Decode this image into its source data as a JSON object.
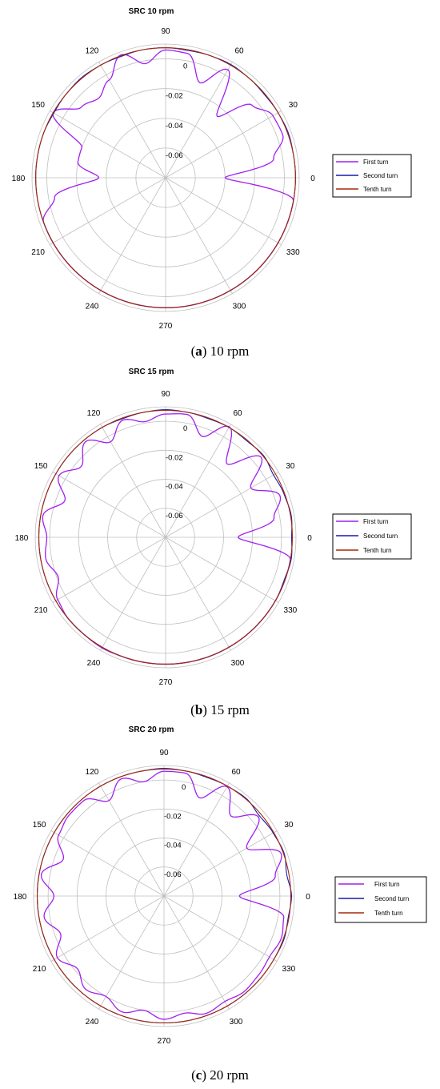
{
  "colors": {
    "first_turn": "#a020f0",
    "second_turn": "#1a1aa8",
    "tenth_turn": "#a52a0a",
    "grid": "#bfbfbf"
  },
  "chart_data": [
    {
      "type": "polar-line",
      "title": "SRC 10 rpm",
      "caption": {
        "letter": "a",
        "text": "10 rpm"
      },
      "angular_ticks": [
        "0",
        "30",
        "60",
        "90",
        "120",
        "150",
        "180",
        "210",
        "240",
        "270",
        "300",
        "330"
      ],
      "radial_ticks": [
        "0",
        "-0.02",
        "-0.04",
        "-0.06"
      ],
      "rlim": [
        -0.08,
        0.01
      ],
      "legend": {
        "placement": "right",
        "entries": [
          "First turn",
          "Second turn",
          "Tenth turn"
        ]
      },
      "series": [
        {
          "name": "First turn",
          "base": 0.0075,
          "angle_step_deg": 10,
          "values": [
            -0.04,
            -0.006,
            0.004,
            0.0035,
            -0.004,
            -0.026,
            0.004,
            -0.012,
            0.005,
            0.006,
            -0.002,
            0.008,
            -0.004,
            -0.01,
            -0.006,
            0.0075,
            -0.02,
            -0.02,
            -0.035,
            -0.004,
            0.0075,
            0.0075,
            0.0075,
            0.0075,
            0.0075,
            0.0075,
            0.0075,
            0.0075,
            0.0075,
            0.0075,
            0.0075,
            0.0075,
            0.0075,
            0.0075,
            0.0075,
            0.0075
          ]
        },
        {
          "name": "Second turn",
          "base": 0.0075,
          "angle_step_deg": 10,
          "values": [
            0.0075,
            0.0075,
            0.008,
            0.0075,
            0.007,
            0.0075,
            0.008,
            0.0075,
            0.007,
            0.0075,
            0.0075,
            0.007,
            0.0075,
            0.008,
            0.0075,
            0.007,
            0.0075,
            0.0075,
            0.0075,
            0.0075,
            0.0075,
            0.0075,
            0.0075,
            0.0075,
            0.0075,
            0.0075,
            0.0075,
            0.0075,
            0.0075,
            0.0075,
            0.0075,
            0.0075,
            0.0075,
            0.0075,
            0.0075,
            0.0075
          ]
        },
        {
          "name": "Tenth turn",
          "base": 0.0075,
          "angle_step_deg": 10,
          "values": [
            0.0075,
            0.0075,
            0.0075,
            0.0075,
            0.0075,
            0.0075,
            0.0075,
            0.0075,
            0.0075,
            0.0075,
            0.0075,
            0.0075,
            0.0075,
            0.0075,
            0.0075,
            0.0075,
            0.0075,
            0.0075,
            0.0075,
            0.0075,
            0.0075,
            0.0075,
            0.0075,
            0.0075,
            0.0075,
            0.0075,
            0.0075,
            0.0075,
            0.0075,
            0.0075,
            0.0075,
            0.0075,
            0.0075,
            0.0075,
            0.0075,
            0.0075
          ]
        }
      ]
    },
    {
      "type": "polar-line",
      "title": "SRC 15 rpm",
      "caption": {
        "letter": "b",
        "text": "15 rpm"
      },
      "angular_ticks": [
        "0",
        "30",
        "60",
        "90",
        "120",
        "150",
        "180",
        "210",
        "240",
        "270",
        "300",
        "330"
      ],
      "radial_ticks": [
        "0",
        "-0.02",
        "-0.04",
        "-0.06"
      ],
      "rlim": [
        -0.08,
        0.01
      ],
      "legend": {
        "placement": "right",
        "entries": [
          "First turn",
          "Second turn",
          "Tenth turn"
        ]
      },
      "series": [
        {
          "name": "First turn",
          "base": 0.0075,
          "angle_step_deg": 10,
          "values": [
            -0.03,
            -0.004,
            0.004,
            -0.012,
            0.006,
            -0.014,
            0.008,
            -0.006,
            0.006,
            0.005,
            0.001,
            0.006,
            -0.004,
            0.006,
            -0.004,
            0.005,
            -0.006,
            0.006,
            0.002,
            0.004,
            -0.001,
            0.006,
            0.0075,
            0.0075,
            0.008,
            0.0075,
            0.0075,
            0.0075,
            0.0075,
            0.0075,
            0.0075,
            0.0075,
            0.0075,
            0.0075,
            0.0075,
            0.0075
          ]
        },
        {
          "name": "Second turn",
          "base": 0.0075,
          "angle_step_deg": 10,
          "values": [
            0.007,
            0.008,
            0.007,
            0.006,
            0.008,
            0.007,
            0.0075,
            0.007,
            0.0075,
            0.008,
            0.0075,
            0.007,
            0.0075,
            0.0075,
            0.0075,
            0.0075,
            0.0075,
            0.0075,
            0.0075,
            0.0075,
            0.0075,
            0.0075,
            0.0075,
            0.0075,
            0.0075,
            0.0075,
            0.0075,
            0.0075,
            0.0075,
            0.0075,
            0.0075,
            0.0075,
            0.0075,
            0.0075,
            0.007,
            0.008
          ]
        },
        {
          "name": "Tenth turn",
          "base": 0.0075,
          "angle_step_deg": 10,
          "values": [
            0.0075,
            0.0075,
            0.0075,
            0.0075,
            0.0075,
            0.0075,
            0.0075,
            0.0075,
            0.0075,
            0.0075,
            0.0075,
            0.0075,
            0.0075,
            0.0075,
            0.0075,
            0.0075,
            0.0075,
            0.0075,
            0.0075,
            0.0075,
            0.0075,
            0.0075,
            0.0075,
            0.0075,
            0.0075,
            0.0075,
            0.0075,
            0.0075,
            0.0075,
            0.0075,
            0.0075,
            0.0075,
            0.0075,
            0.0075,
            0.0075,
            0.0075
          ]
        }
      ]
    },
    {
      "type": "polar-line",
      "title": "SRC 20 rpm",
      "caption": {
        "letter": "c",
        "text": "20 rpm"
      },
      "angular_ticks": [
        "0",
        "30",
        "60",
        "90",
        "120",
        "150",
        "180",
        "210",
        "240",
        "270",
        "300",
        "330"
      ],
      "radial_ticks": [
        "0",
        "-0.02",
        "-0.04",
        "-0.06"
      ],
      "rlim": [
        -0.08,
        0.01
      ],
      "legend": {
        "placement": "right",
        "entries": [
          "First turn",
          "Second turn",
          "Tenth turn"
        ]
      },
      "series": [
        {
          "name": "First turn",
          "base": 0.0075,
          "angle_step_deg": 10,
          "values": [
            -0.028,
            -0.002,
            0.006,
            -0.014,
            0.005,
            -0.008,
            0.007,
            -0.008,
            0.006,
            0.006,
            0.0,
            0.006,
            -0.004,
            0.006,
            0.006,
            0.004,
            -0.006,
            0.006,
            -0.004,
            0.004,
            -0.004,
            0.005,
            -0.002,
            0.004,
            0.0,
            0.005,
            0.0,
            0.005,
            0.002,
            0.006,
            0.004,
            0.006,
            0.005,
            0.004,
            0.006,
            0.004
          ]
        },
        {
          "name": "Second turn",
          "base": 0.0075,
          "angle_step_deg": 10,
          "values": [
            0.008,
            0.006,
            0.008,
            0.007,
            0.006,
            0.008,
            0.0075,
            0.007,
            0.0075,
            0.008,
            0.0075,
            0.0075,
            0.0075,
            0.0075,
            0.0075,
            0.0075,
            0.0075,
            0.0075,
            0.0075,
            0.0075,
            0.0075,
            0.0075,
            0.0075,
            0.0075,
            0.0075,
            0.0075,
            0.0075,
            0.0075,
            0.0075,
            0.0075,
            0.0075,
            0.0075,
            0.0075,
            0.0075,
            0.008,
            0.007
          ]
        },
        {
          "name": "Tenth turn",
          "base": 0.0075,
          "angle_step_deg": 10,
          "values": [
            0.0075,
            0.0075,
            0.0075,
            0.0075,
            0.0075,
            0.0075,
            0.0075,
            0.0075,
            0.0075,
            0.0075,
            0.0075,
            0.0075,
            0.0075,
            0.0075,
            0.0075,
            0.0075,
            0.0075,
            0.0075,
            0.0075,
            0.0075,
            0.0075,
            0.0075,
            0.0075,
            0.0075,
            0.0075,
            0.0075,
            0.0075,
            0.0075,
            0.0075,
            0.0075,
            0.0075,
            0.0075,
            0.0075,
            0.0075,
            0.0075,
            0.0075
          ]
        }
      ]
    }
  ]
}
